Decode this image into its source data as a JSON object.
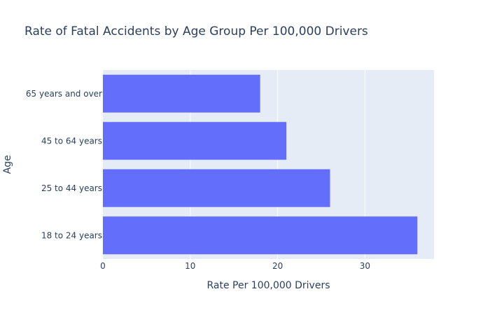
{
  "chart_data": {
    "type": "bar",
    "orientation": "horizontal",
    "title": "Rate of Fatal Accidents by Age Group Per 100,000 Drivers",
    "xlabel": "Rate Per 100,000 Drivers",
    "ylabel": "Age",
    "categories": [
      "18 to 24 years",
      "25 to 44 years",
      "45 to 64 years",
      "65 years and over"
    ],
    "values": [
      36,
      26,
      21,
      18
    ],
    "xlim": [
      0,
      37.9
    ],
    "xticks": [
      0,
      10,
      20,
      30
    ],
    "grid": true,
    "colors": {
      "bar": "#636efa",
      "plot_background": "#e5ecf6",
      "grid": "#ffffff",
      "text": "#2a3f5f"
    }
  }
}
